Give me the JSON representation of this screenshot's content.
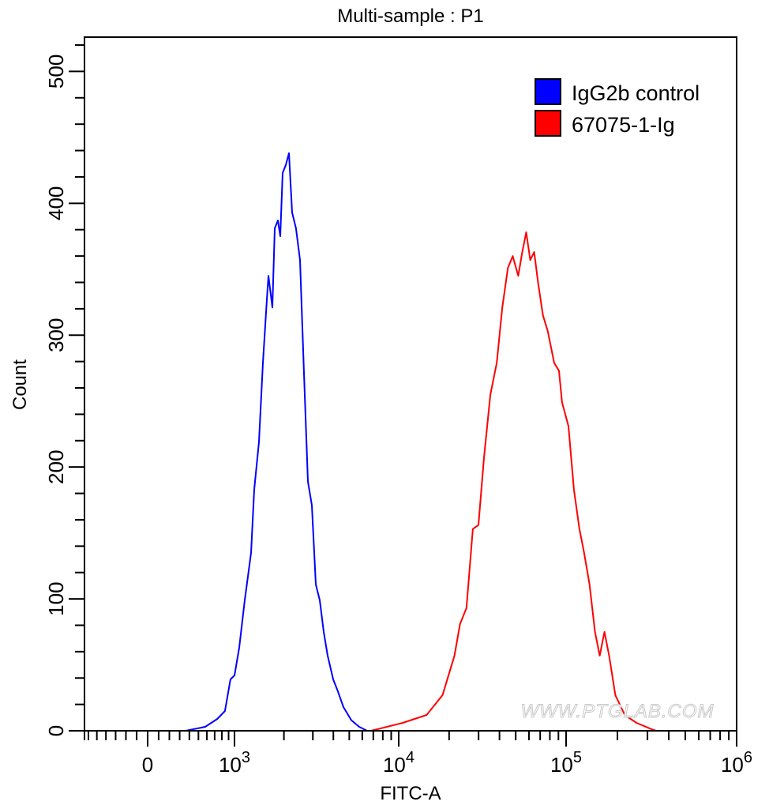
{
  "chart_data": {
    "type": "line",
    "title": "Multi-sample : P1",
    "xlabel": "FITC-A",
    "ylabel": "Count",
    "x_scale": "biexponential",
    "xlim": [
      -650,
      1000000
    ],
    "ylim": [
      0,
      526
    ],
    "grid": false,
    "legend_placement": "top-right",
    "x_ticks": [
      {
        "value": 0,
        "label": "0"
      },
      {
        "value": 1000,
        "base": "10",
        "exp": "3"
      },
      {
        "value": 10000,
        "base": "10",
        "exp": "4"
      },
      {
        "value": 100000,
        "base": "10",
        "exp": "5"
      },
      {
        "value": 1000000,
        "base": "10",
        "exp": "6"
      }
    ],
    "y_ticks": [
      {
        "value": 0,
        "label": "0"
      },
      {
        "value": 100,
        "label": "100"
      },
      {
        "value": 200,
        "label": "200"
      },
      {
        "value": 300,
        "label": "300"
      },
      {
        "value": 400,
        "label": "400"
      },
      {
        "value": 500,
        "label": "500"
      }
    ],
    "series": [
      {
        "name": "IgG2b control",
        "color": "#0000ff",
        "x": [
          360,
          580,
          735,
          845,
          930,
          1000,
          1069,
          1155,
          1262,
          1319,
          1409,
          1489,
          1574,
          1610,
          1701,
          1758,
          1838,
          1900,
          1964,
          2053,
          2147,
          2244,
          2370,
          2507,
          2647,
          2799,
          2958,
          3126,
          3305,
          3493,
          3692,
          3992,
          4258,
          4607,
          5146,
          5747,
          6419
        ],
        "y": [
          0,
          3,
          9,
          15,
          39,
          42,
          63,
          99,
          135,
          183,
          219,
          279,
          327,
          345,
          321,
          381,
          387,
          375,
          423,
          429,
          438,
          393,
          381,
          357,
          273,
          189,
          171,
          111,
          99,
          75,
          57,
          39,
          30,
          18,
          8,
          3,
          0
        ]
      },
      {
        "name": "67075-1-Ig",
        "color": "#ff0000",
        "x": [
          6790,
          10563,
          14680,
          18280,
          21540,
          23260,
          25400,
          27730,
          29940,
          32320,
          35280,
          38530,
          41590,
          44920,
          47970,
          51800,
          54720,
          57810,
          61050,
          64500,
          68130,
          72780,
          77710,
          84840,
          90640,
          94660,
          103200,
          111100,
          119700,
          127500,
          137300,
          147800,
          157500,
          167900,
          178800,
          194500,
          220800,
          258800,
          319600,
          337000
        ],
        "y": [
          0,
          6,
          12,
          27,
          57,
          81,
          93,
          153,
          156,
          207,
          255,
          279,
          321,
          351,
          360,
          345,
          363,
          378,
          357,
          363,
          339,
          315,
          303,
          279,
          273,
          249,
          231,
          183,
          153,
          135,
          111,
          75,
          57,
          75,
          57,
          27,
          12,
          6,
          1,
          0
        ]
      }
    ]
  },
  "watermark": "WWW.PTGLAB.COM"
}
